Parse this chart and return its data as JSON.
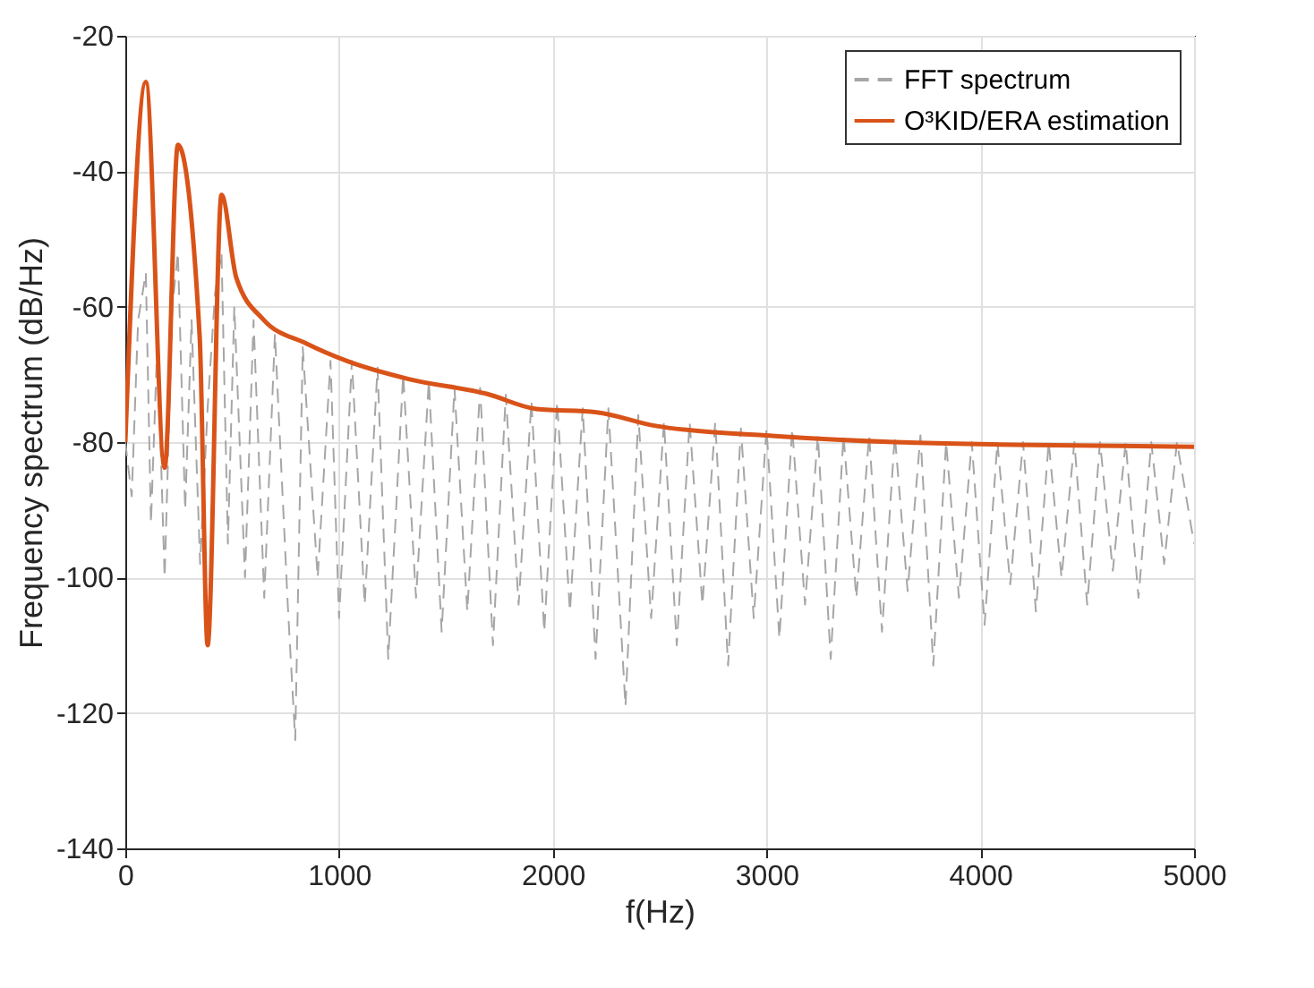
{
  "chart_data": {
    "type": "line",
    "xlabel": "f(Hz)",
    "ylabel": "Frequency spectrum (dB/Hz)",
    "xlim": [
      0,
      5000
    ],
    "xticks": [
      0,
      1000,
      2000,
      3000,
      4000,
      5000
    ],
    "ylim": [
      -140,
      -20
    ],
    "yticks": [
      -140,
      -120,
      -100,
      -80,
      -60,
      -40,
      -20
    ],
    "grid": true,
    "legend": "top right",
    "series": [
      {
        "name": "FFT spectrum",
        "color": "#a6a6a6",
        "line_style": "dashed",
        "x": [
          0,
          30,
          60,
          96,
          120,
          150,
          184,
          220,
          246,
          280,
          310,
          350,
          385,
          420,
          450,
          480,
          510,
          560,
          600,
          650,
          700,
          760,
          795,
          830,
          900,
          960,
          1000,
          1060,
          1120,
          1180,
          1230,
          1300,
          1360,
          1420,
          1480,
          1540,
          1600,
          1660,
          1720,
          1780,
          1840,
          1900,
          1960,
          2020,
          2080,
          2140,
          2200,
          2260,
          2340,
          2400,
          2460,
          2520,
          2580,
          2640,
          2700,
          2760,
          2820,
          2880,
          2940,
          3000,
          3060,
          3120,
          3180,
          3240,
          3300,
          3360,
          3420,
          3480,
          3540,
          3600,
          3660,
          3720,
          3780,
          3840,
          3900,
          3960,
          4020,
          4080,
          4140,
          4200,
          4260,
          4320,
          4380,
          4440,
          4500,
          4560,
          4620,
          4680,
          4740,
          4800,
          4860,
          4920,
          5000
        ],
        "values": [
          -80,
          -88,
          -62,
          -55,
          -92,
          -65,
          -100,
          -60,
          -52,
          -90,
          -62,
          -98,
          -75,
          -58,
          -52,
          -95,
          -60,
          -100,
          -62,
          -103,
          -64,
          -104,
          -124,
          -66,
          -100,
          -68,
          -106,
          -68,
          -104,
          -69,
          -112,
          -70,
          -103,
          -71,
          -108,
          -72,
          -105,
          -72,
          -110,
          -73,
          -104,
          -74,
          -108,
          -74,
          -105,
          -75,
          -112,
          -75,
          -119,
          -76,
          -106,
          -77,
          -110,
          -77,
          -104,
          -77,
          -113,
          -78,
          -106,
          -78,
          -109,
          -78,
          -104,
          -79,
          -112,
          -79,
          -103,
          -79,
          -108,
          -79,
          -102,
          -79,
          -113,
          -80,
          -103,
          -80,
          -107,
          -80,
          -101,
          -80,
          -105,
          -80,
          -100,
          -80,
          -104,
          -80,
          -99,
          -80,
          -103,
          -80,
          -98,
          -80,
          -95
        ]
      },
      {
        "name": "O³KID/ERA estimation",
        "color": "#d95319",
        "line_style": "solid",
        "x": [
          0,
          96,
          184,
          246,
          348,
          385,
          450,
          519,
          646,
          844,
          1043,
          1326,
          1694,
          1922,
          2205,
          2481,
          3039,
          3598,
          4157,
          5000
        ],
        "values": [
          -80,
          -26.8,
          -83.8,
          -36.1,
          -64.5,
          -110,
          -43.5,
          -55.7,
          -61.9,
          -65.4,
          -68.1,
          -70.7,
          -72.9,
          -75.1,
          -75.6,
          -77.6,
          -79.1,
          -80.0,
          -80.4,
          -80.7
        ]
      }
    ]
  }
}
